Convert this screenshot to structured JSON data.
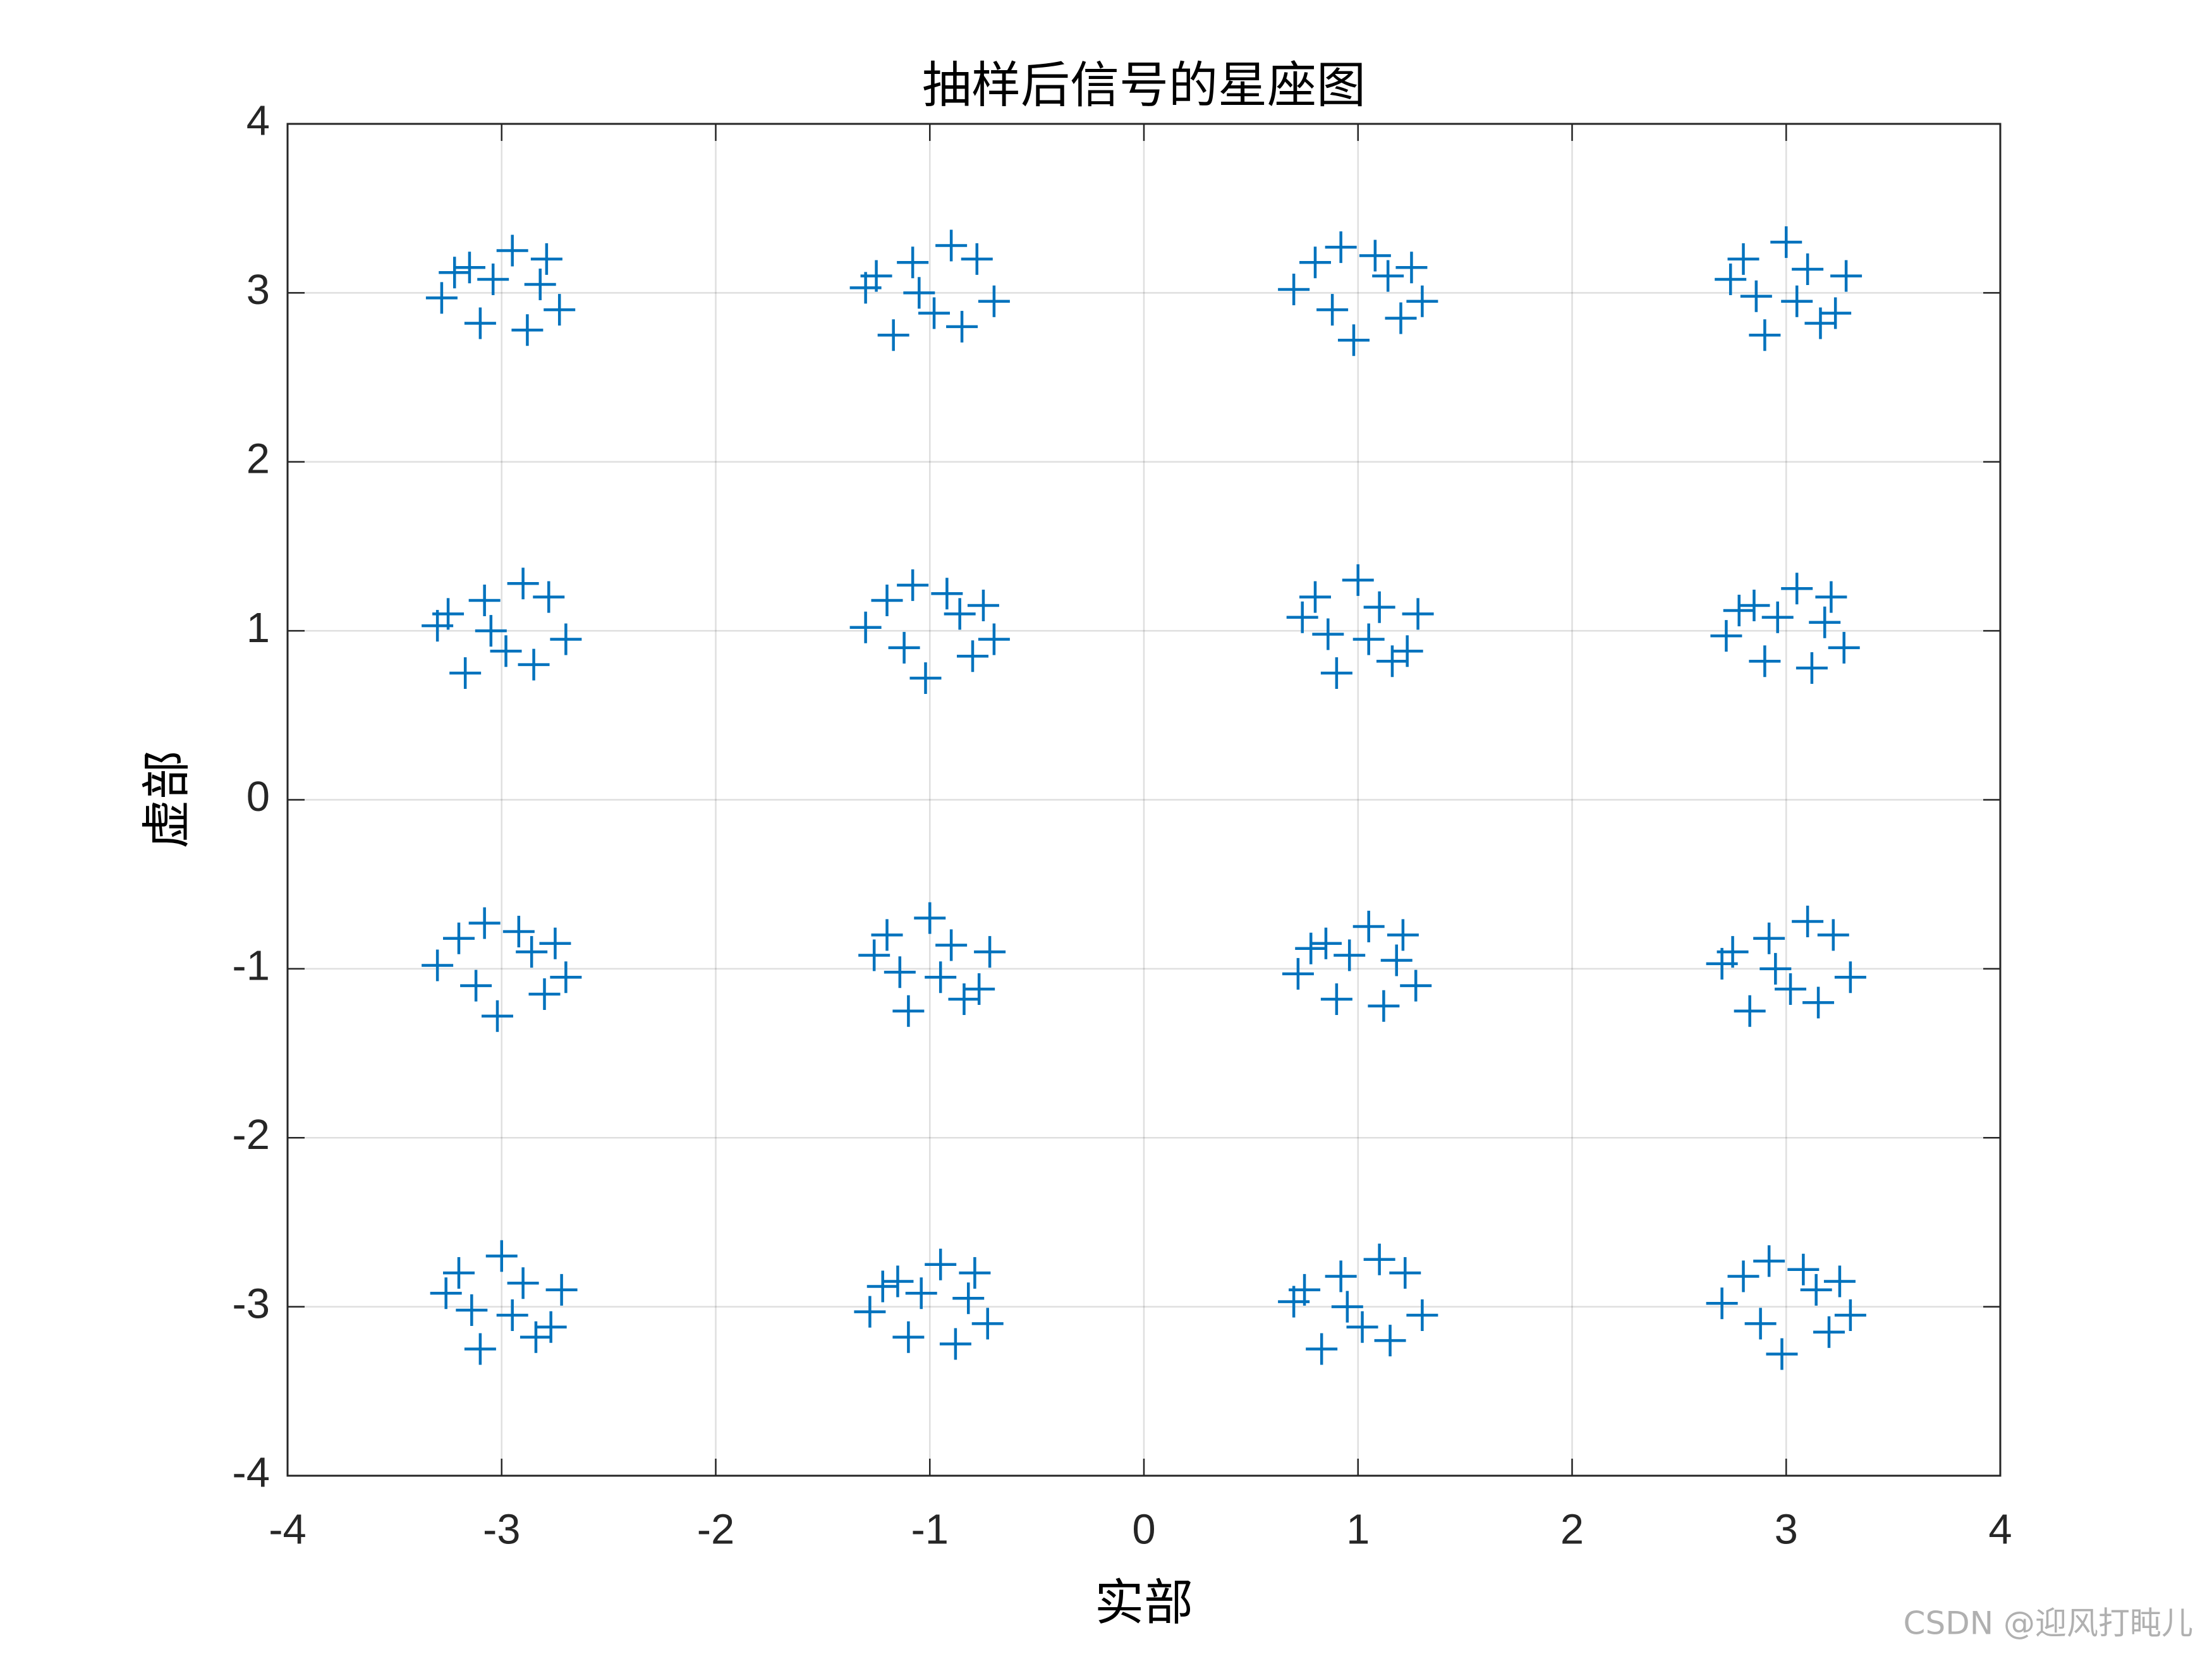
{
  "chart_data": {
    "type": "scatter",
    "title": "抽样后信号的星座图",
    "xlabel": "实部",
    "ylabel": "虚部",
    "watermark": "CSDN @迎风打盹儿",
    "color": "#0072bd",
    "marker": "plus",
    "grid": true,
    "xlim": [
      -4,
      4
    ],
    "ylim": [
      -4,
      4
    ],
    "xticks": [
      -4,
      -3,
      -2,
      -1,
      0,
      1,
      2,
      3,
      4
    ],
    "yticks": [
      -4,
      -3,
      -2,
      -1,
      0,
      1,
      2,
      3,
      4
    ],
    "x": [
      -3.22,
      -3.1,
      -2.95,
      -2.82,
      -2.73,
      -3.28,
      -2.88,
      -3.04,
      -2.79,
      -3.15,
      -0.85,
      -1.25,
      -1.08,
      -0.7,
      -0.98,
      -1.17,
      -0.78,
      -1.3,
      -0.9,
      -1.05,
      0.7,
      1.08,
      1.2,
      0.88,
      1.25,
      0.98,
      0.8,
      1.14,
      1.3,
      0.92,
      3.05,
      2.8,
      3.28,
      2.9,
      3.16,
      2.74,
      3.0,
      3.23,
      2.86,
      3.1,
      -2.85,
      -3.25,
      -3.08,
      -2.7,
      -2.98,
      -3.17,
      -2.78,
      -3.3,
      -2.9,
      -3.05,
      -1.3,
      -0.92,
      -0.8,
      -1.12,
      -0.75,
      -1.02,
      -1.2,
      -0.86,
      -0.7,
      -1.08,
      1.05,
      0.8,
      1.28,
      0.9,
      1.16,
      0.74,
      1.0,
      1.23,
      0.86,
      1.1,
      2.78,
      2.9,
      3.05,
      3.18,
      3.27,
      2.72,
      3.12,
      2.96,
      3.21,
      2.85,
      -3.3,
      -2.92,
      -2.8,
      -3.12,
      -2.75,
      -3.02,
      -3.2,
      -2.86,
      -2.7,
      -3.08,
      -0.95,
      -1.2,
      -0.72,
      -1.1,
      -0.84,
      -1.26,
      -1.0,
      -0.77,
      -1.14,
      -0.9,
      0.78,
      0.9,
      1.05,
      1.18,
      1.27,
      0.72,
      1.12,
      0.96,
      1.21,
      0.85,
      3.15,
      2.75,
      2.92,
      3.3,
      3.02,
      2.83,
      3.22,
      2.7,
      3.1,
      2.95,
      -2.95,
      -3.2,
      -2.72,
      -3.1,
      -2.84,
      -3.26,
      -3.0,
      -2.77,
      -3.14,
      -2.9,
      -1.22,
      -1.1,
      -0.95,
      -0.82,
      -0.73,
      -1.28,
      -0.88,
      -1.04,
      -0.79,
      -1.15,
      1.15,
      0.75,
      0.92,
      1.3,
      1.02,
      0.83,
      1.22,
      0.7,
      1.1,
      0.95,
      2.7,
      3.08,
      3.2,
      2.88,
      3.25,
      2.98,
      2.8,
      3.14,
      3.3,
      2.92
    ],
    "values": [
      3.12,
      2.82,
      3.25,
      3.05,
      2.9,
      2.97,
      2.78,
      3.08,
      3.2,
      3.15,
      2.8,
      3.1,
      3.18,
      2.95,
      2.88,
      2.75,
      3.2,
      3.03,
      3.28,
      3.0,
      3.02,
      3.22,
      2.85,
      2.9,
      3.15,
      2.72,
      3.18,
      3.1,
      2.95,
      3.27,
      2.95,
      3.2,
      3.1,
      2.75,
      2.82,
      3.08,
      3.3,
      2.88,
      2.98,
      3.14,
      0.8,
      1.1,
      1.18,
      0.95,
      0.88,
      0.75,
      1.2,
      1.03,
      1.28,
      1.0,
      1.02,
      1.22,
      0.85,
      0.9,
      1.15,
      0.72,
      1.18,
      1.1,
      0.95,
      1.27,
      0.95,
      1.2,
      1.1,
      0.75,
      0.82,
      1.08,
      1.3,
      0.88,
      0.98,
      1.14,
      1.12,
      0.82,
      1.25,
      1.05,
      0.9,
      0.97,
      0.78,
      1.08,
      1.2,
      1.15,
      -0.98,
      -0.78,
      -1.15,
      -1.1,
      -0.85,
      -1.28,
      -0.82,
      -0.9,
      -1.05,
      -0.73,
      -1.05,
      -0.8,
      -0.9,
      -1.25,
      -1.18,
      -0.92,
      -0.7,
      -1.12,
      -1.02,
      -0.86,
      -0.88,
      -1.18,
      -0.75,
      -0.95,
      -1.1,
      -1.03,
      -1.22,
      -0.92,
      -0.8,
      -0.85,
      -1.2,
      -0.9,
      -0.82,
      -1.05,
      -1.12,
      -1.25,
      -0.8,
      -0.97,
      -0.72,
      -1.0,
      -3.05,
      -2.8,
      -2.9,
      -3.25,
      -3.18,
      -2.92,
      -2.7,
      -3.12,
      -3.02,
      -2.86,
      -2.88,
      -3.18,
      -2.75,
      -2.95,
      -3.1,
      -3.03,
      -3.22,
      -2.92,
      -2.8,
      -2.85,
      -3.2,
      -2.9,
      -2.82,
      -3.05,
      -3.12,
      -3.25,
      -2.8,
      -2.97,
      -2.72,
      -3.0,
      -2.98,
      -2.78,
      -3.15,
      -3.1,
      -2.85,
      -3.28,
      -2.82,
      -2.9,
      -3.05,
      -2.73
    ]
  }
}
